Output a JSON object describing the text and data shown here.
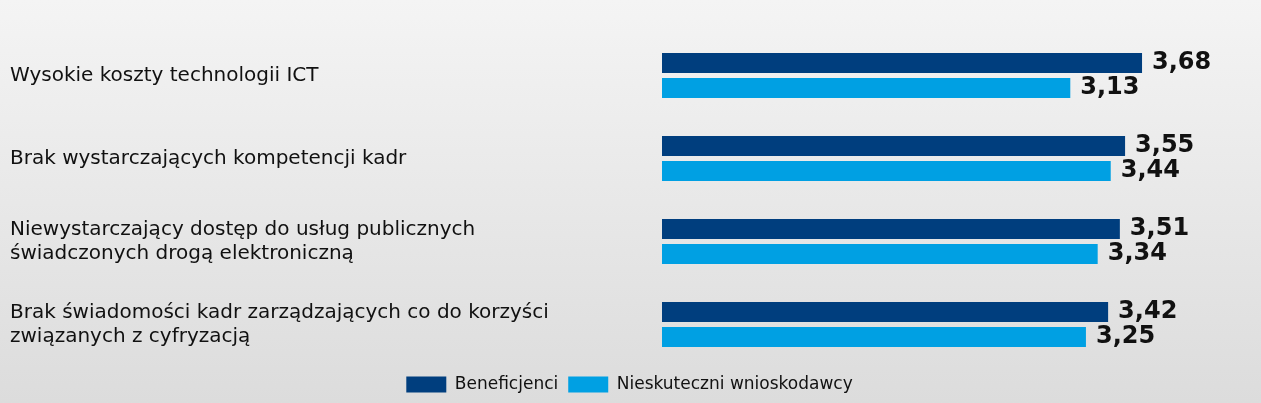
{
  "chart_data": {
    "type": "bar",
    "orientation": "horizontal",
    "categories": [
      "Wysokie koszty technologii ICT",
      "Brak wystarczających kompetencji kadr",
      "Niewystarczający dostęp do usług publicznych świadczonych drogą elektroniczną",
      "Brak świadomości kadr zarządzających co do korzyści związanych z cyfryzacją"
    ],
    "series": [
      {
        "name": "Beneficjenci",
        "color": "#003e7e",
        "values": [
          3.68,
          3.55,
          3.51,
          3.42
        ],
        "value_labels": [
          "3,68",
          "3,55",
          "3,51",
          "3,42"
        ]
      },
      {
        "name": "Nieskuteczni wnioskodawcy",
        "color": "#00a0e3",
        "values": [
          3.13,
          3.44,
          3.34,
          3.25
        ],
        "value_labels": [
          "3,13",
          "3,44",
          "3,34",
          "3,25"
        ]
      }
    ],
    "legend": "bottom",
    "grid": false,
    "tick_labels": "y"
  }
}
